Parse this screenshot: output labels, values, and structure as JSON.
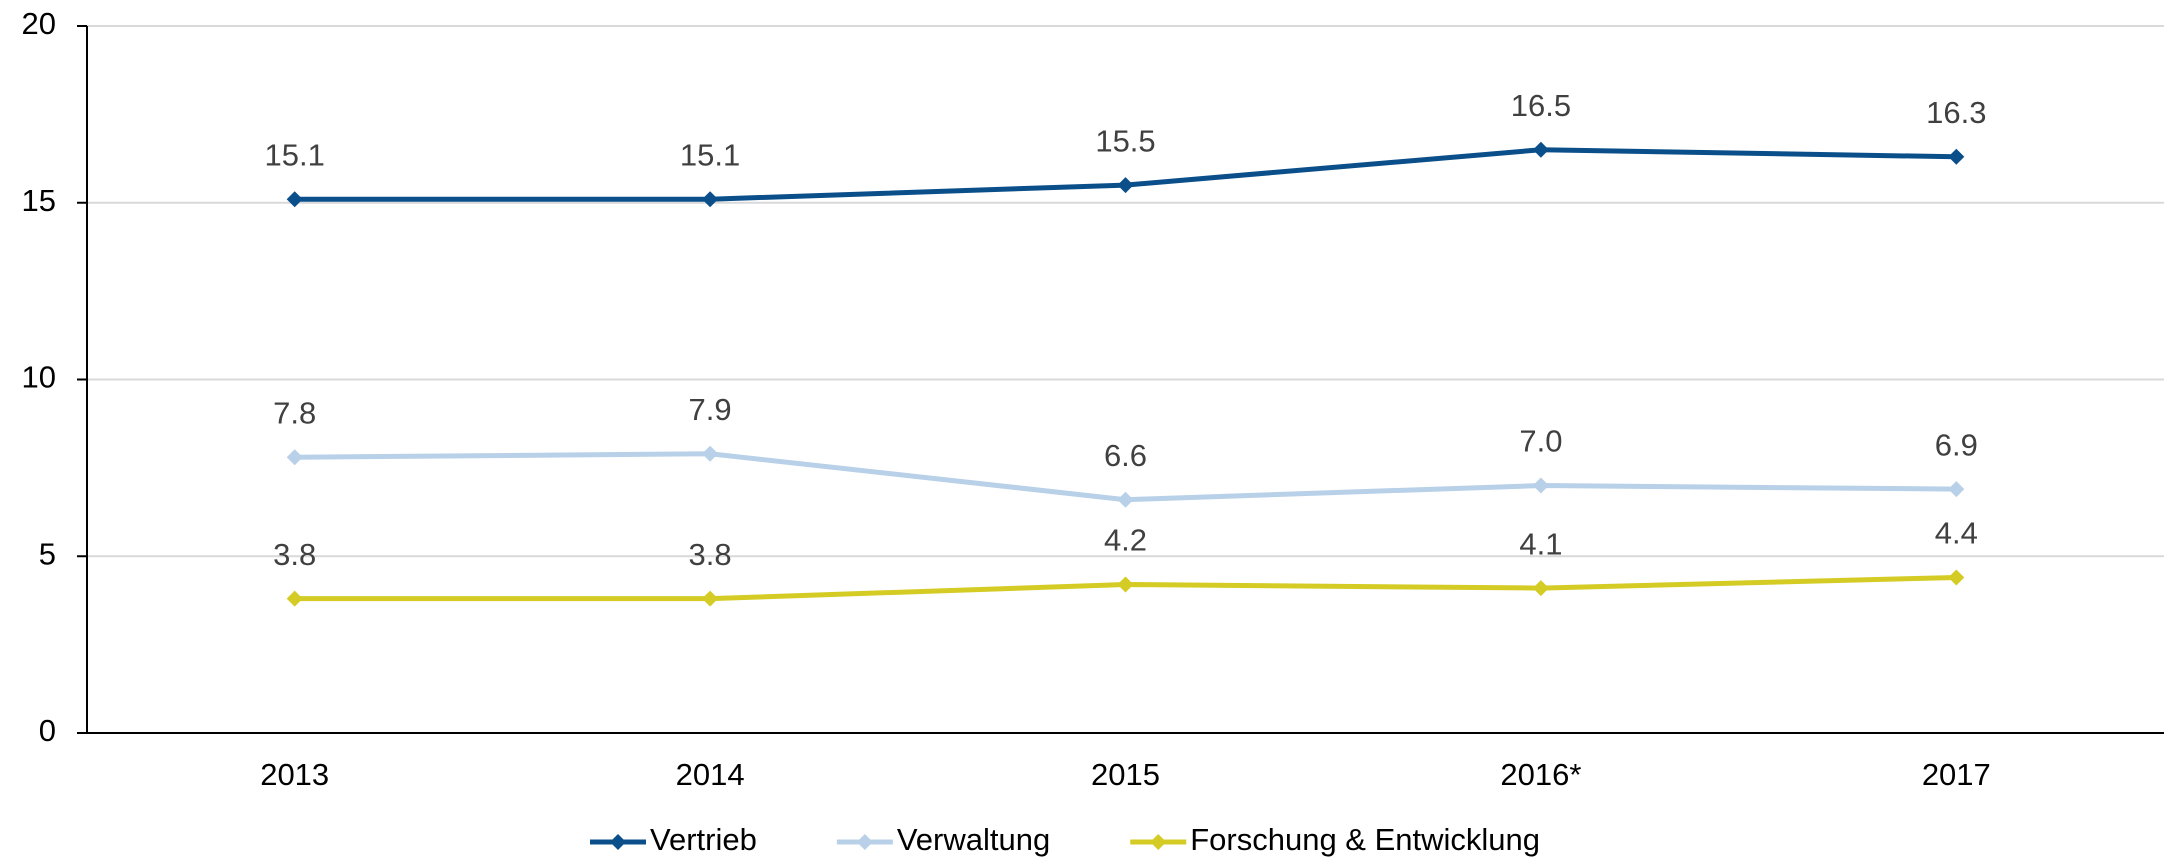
{
  "chart_data": {
    "type": "line",
    "categories": [
      "2013",
      "2014",
      "2015",
      "2016*",
      "2017"
    ],
    "series": [
      {
        "name": "Vertrieb",
        "color": "#0b4f8a",
        "values": [
          15.1,
          15.1,
          15.5,
          16.5,
          16.3
        ],
        "value_labels": [
          "15.1",
          "15.1",
          "15.5",
          "16.5",
          "16.3"
        ]
      },
      {
        "name": "Verwaltung",
        "color": "#b8d0e8",
        "values": [
          7.8,
          7.9,
          6.6,
          7.0,
          6.9
        ],
        "value_labels": [
          "7.8",
          "7.9",
          "6.6",
          "7.0",
          "6.9"
        ]
      },
      {
        "name": "Forschung & Entwicklung",
        "color": "#d4cc24",
        "values": [
          3.8,
          3.8,
          4.2,
          4.1,
          4.4
        ],
        "value_labels": [
          "3.8",
          "3.8",
          "4.2",
          "4.1",
          "4.4"
        ]
      }
    ],
    "ylim": [
      0,
      20
    ],
    "yticks": [
      0,
      5,
      10,
      15,
      20
    ],
    "grid": true,
    "legend": "bottom"
  }
}
